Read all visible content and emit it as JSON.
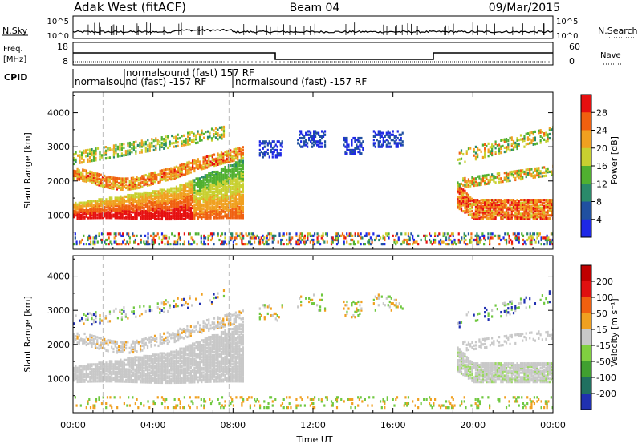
{
  "header": {
    "station": "Adak West (fitACF)",
    "beam": "Beam 04",
    "date": "09/Mar/2015"
  },
  "panel_labels": {
    "nsky": "N.Sky",
    "nsearch": "N.Search",
    "freq": "Freq.",
    "freq_unit": "[MHz]",
    "nave": "Nave",
    "cpid": "CPID",
    "nsky_ticks": [
      "10^5",
      "10^0"
    ],
    "nsearch_ticks": [
      "10^5",
      "10^0"
    ],
    "freq_ticks": [
      "18",
      "8"
    ],
    "nave_ticks": [
      "60",
      "0"
    ]
  },
  "cpid_labels": [
    {
      "text": "normalsound (fast) 157 RF",
      "start": "01:30"
    },
    {
      "text": "normalsound (fast) -157 RF",
      "start": "00:00"
    },
    {
      "text": "normalsound (fast) -157 RF",
      "start": "07:30"
    }
  ],
  "chart_data": [
    {
      "type": "heatmap",
      "parameter": "Power",
      "ylabel": "Slant Range [km]",
      "xlabel": "",
      "ylim": [
        0,
        4600
      ],
      "yticks": [
        "1000",
        "2000",
        "3000",
        "4000"
      ],
      "xticks": [
        "00:00",
        "04:00",
        "08:00",
        "12:00",
        "16:00",
        "20:00",
        "00:00"
      ],
      "colorbar": {
        "label": "Power [dB]",
        "ticks": [
          "4",
          "8",
          "12",
          "16",
          "20",
          "24",
          "28"
        ],
        "colors": [
          "#1e28e6",
          "#2050a0",
          "#2a8a6a",
          "#50b030",
          "#c8d030",
          "#f0a020",
          "#f06010",
          "#e61010"
        ]
      }
    },
    {
      "type": "heatmap",
      "parameter": "Velocity",
      "ylabel": "Slant Range [km]",
      "xlabel": "Time UT",
      "ylim": [
        0,
        4600
      ],
      "yticks": [
        "1000",
        "2000",
        "3000",
        "4000"
      ],
      "xticks": [
        "00:00",
        "04:00",
        "08:00",
        "12:00",
        "16:00",
        "20:00",
        "00:00"
      ],
      "colorbar": {
        "label": "Velocity [m s⁻¹]",
        "ticks": [
          "200",
          "100",
          "50",
          "15",
          "-15",
          "-50",
          "-100",
          "-200"
        ],
        "colors": [
          "#2030b0",
          "#207060",
          "#40a030",
          "#80d040",
          "#c8c8c8",
          "#f0a020",
          "#f06010",
          "#e01010",
          "#c00000"
        ]
      }
    }
  ]
}
